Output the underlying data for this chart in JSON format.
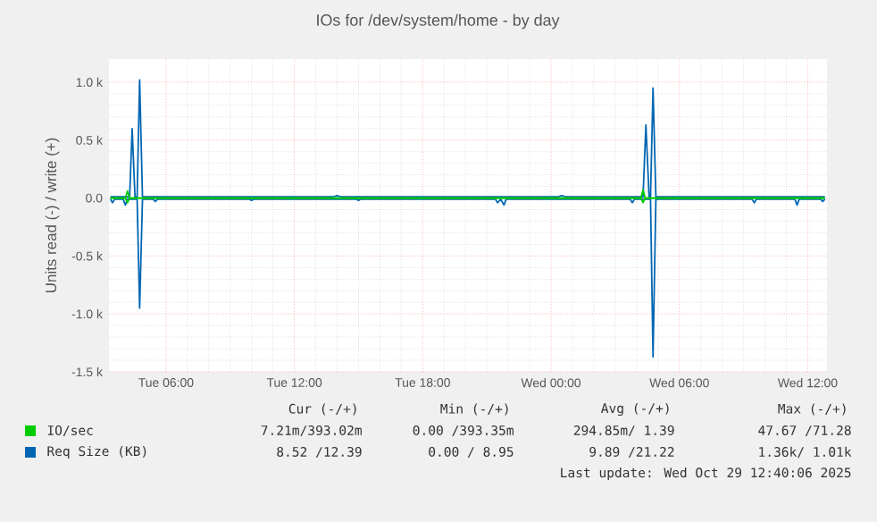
{
  "chart_data": {
    "type": "line",
    "title": "IOs for /dev/system/home - by day",
    "ylabel": "Units read (-) / write (+)",
    "xlim": [
      "2025-10-28T03:20",
      "2025-10-29T12:54"
    ],
    "ylim": [
      -1500,
      1200
    ],
    "xticks": [
      {
        "value": "2025-10-28T06:00",
        "label": "Tue 06:00"
      },
      {
        "value": "2025-10-28T12:00",
        "label": "Tue 12:00"
      },
      {
        "value": "2025-10-28T18:00",
        "label": "Tue 18:00"
      },
      {
        "value": "2025-10-29T00:00",
        "label": "Wed 00:00"
      },
      {
        "value": "2025-10-29T06:00",
        "label": "Wed 06:00"
      },
      {
        "value": "2025-10-29T12:00",
        "label": "Wed 12:00"
      }
    ],
    "yticks": [
      {
        "value": -1500,
        "label": "-1.5 k"
      },
      {
        "value": -1000,
        "label": "-1.0 k"
      },
      {
        "value": -500,
        "label": "-0.5 k"
      },
      {
        "value": 0,
        "label": "0.0"
      },
      {
        "value": 500,
        "label": "0.5 k"
      },
      {
        "value": 1000,
        "label": "1.0 k"
      }
    ],
    "grid": true,
    "legend": "bottom",
    "series": [
      {
        "name": "IO/sec",
        "color": "#00cc00",
        "x": [
          "2025-10-28T03:24",
          "2025-10-28T04:06",
          "2025-10-28T04:12",
          "2025-10-28T04:18",
          "2025-10-29T04:12",
          "2025-10-29T04:18",
          "2025-10-29T04:24",
          "2025-10-29T12:48"
        ],
        "values": [
          0,
          0,
          60,
          0,
          0,
          70,
          0,
          0
        ]
      },
      {
        "color": "#00cc00",
        "x": [
          "2025-10-28T03:24",
          "2025-10-28T04:06",
          "2025-10-28T04:12",
          "2025-10-28T04:18",
          "2025-10-29T04:12",
          "2025-10-29T04:18",
          "2025-10-29T04:24",
          "2025-10-29T12:48"
        ],
        "values": [
          0,
          0,
          -40,
          0,
          0,
          -40,
          0,
          0
        ]
      },
      {
        "name": "Req Size (KB)",
        "color": "#0066b3",
        "x": [
          "2025-10-28T03:24",
          "2025-10-28T04:18",
          "2025-10-28T04:25",
          "2025-10-28T04:33",
          "2025-10-28T04:39",
          "2025-10-28T04:46",
          "2025-10-28T04:54",
          "2025-10-28T05:00",
          "2025-10-28T13:48",
          "2025-10-28T14:00",
          "2025-10-28T14:12",
          "2025-10-29T00:18",
          "2025-10-29T00:30",
          "2025-10-29T00:42",
          "2025-10-29T04:18",
          "2025-10-29T04:26",
          "2025-10-29T04:35",
          "2025-10-29T04:39",
          "2025-10-29T04:46",
          "2025-10-29T04:54",
          "2025-10-29T05:00",
          "2025-10-29T12:48"
        ],
        "values": [
          10,
          10,
          600,
          10,
          10,
          1020,
          10,
          10,
          10,
          20,
          10,
          10,
          20,
          10,
          10,
          630,
          10,
          10,
          950,
          10,
          10,
          10
        ]
      },
      {
        "color": "#0066b3",
        "x": [
          "2025-10-28T03:24",
          "2025-10-28T03:30",
          "2025-10-28T03:36",
          "2025-10-28T04:00",
          "2025-10-28T04:06",
          "2025-10-28T04:12",
          "2025-10-28T04:39",
          "2025-10-28T04:46",
          "2025-10-28T04:54",
          "2025-10-28T05:24",
          "2025-10-28T05:30",
          "2025-10-28T05:36",
          "2025-10-28T09:54",
          "2025-10-28T10:00",
          "2025-10-28T10:06",
          "2025-10-28T14:54",
          "2025-10-28T15:00",
          "2025-10-28T15:06",
          "2025-10-28T21:24",
          "2025-10-28T21:30",
          "2025-10-28T21:39",
          "2025-10-28T21:48",
          "2025-10-28T21:54",
          "2025-10-29T03:42",
          "2025-10-29T03:48",
          "2025-10-29T03:54",
          "2025-10-29T04:39",
          "2025-10-29T04:46",
          "2025-10-29T04:54",
          "2025-10-29T09:24",
          "2025-10-29T09:30",
          "2025-10-29T09:36",
          "2025-10-29T11:24",
          "2025-10-29T11:30",
          "2025-10-29T11:36",
          "2025-10-29T12:36",
          "2025-10-29T12:42",
          "2025-10-29T12:48"
        ],
        "values": [
          -10,
          -40,
          -10,
          -10,
          -60,
          -10,
          -10,
          -950,
          -10,
          -10,
          -30,
          -10,
          -10,
          -20,
          -10,
          -10,
          -20,
          -10,
          -10,
          -40,
          -10,
          -60,
          -10,
          -10,
          -40,
          -10,
          -10,
          -1370,
          -10,
          -10,
          -40,
          -10,
          -10,
          -60,
          -10,
          -10,
          -30,
          -10
        ]
      }
    ],
    "annotations": [
      "Cur (-/+)",
      "Min (-/+)",
      "Avg (-/+)",
      "Max (-/+)",
      "7.21m/393.02m",
      "0.00 /393.35m",
      "294.85m/ 1.39",
      "47.67 /71.28",
      "8.52 /12.39",
      "0.00 / 8.95",
      "9.89 /21.22",
      "1.36k/ 1.01k",
      "Last update: Wed Oct 29 12:40:06 2025"
    ]
  }
}
